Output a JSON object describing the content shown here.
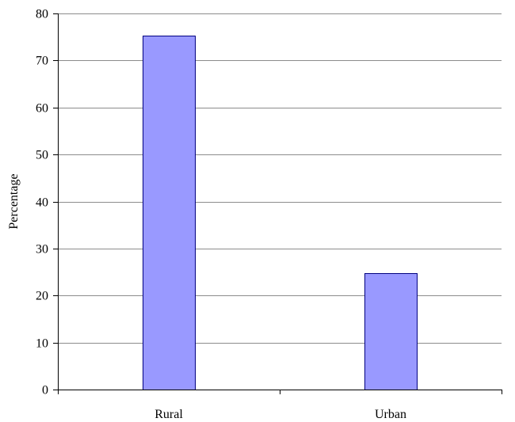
{
  "chart_data": {
    "type": "bar",
    "categories": [
      "Rural",
      "Urban"
    ],
    "values": [
      75.3,
      24.7
    ],
    "title": "",
    "xlabel": "",
    "ylabel": "Percentage",
    "ylim": [
      0,
      80
    ],
    "yticks": [
      0,
      10,
      20,
      30,
      40,
      50,
      60,
      70,
      80
    ],
    "grid": "horizontal",
    "legend": "none",
    "bar_color": "#9999ff",
    "bar_edge_color": "#000080"
  }
}
